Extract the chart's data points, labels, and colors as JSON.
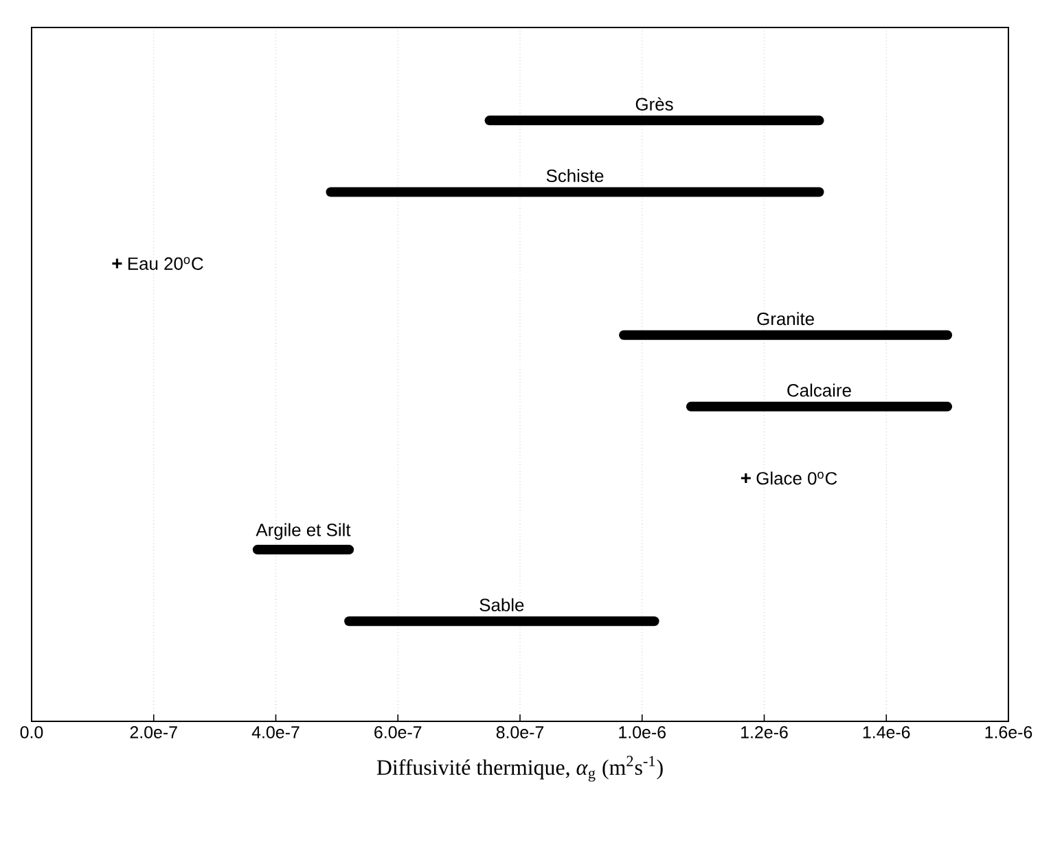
{
  "chart_data": {
    "type": "bar",
    "orientation": "horizontal",
    "xlabel": "Diffusivité thermique, *α*$_{g}$ (m$^{2}$s$^{-1}$)",
    "categories": [
      "Grès",
      "Schiste",
      "Eau 20$^{o}$C",
      "Granite",
      "Calcaire",
      "Glace 0$^{o}$C",
      "Argile et Silt",
      "Sable"
    ],
    "series": [
      {
        "color": "#000000",
        "base": [
          7.5e-07,
          4.9e-07,
          null,
          9.7e-07,
          1.08e-06,
          null,
          3.7e-07,
          5.2e-07
        ],
        "values": [
          5.4e-07,
          8e-07,
          null,
          5.3e-07,
          4.2e-07,
          null,
          1.5e-07,
          5e-07
        ]
      },
      {
        "type": "scatter",
        "color": "#000000",
        "marker": "cross",
        "values": [
          null,
          null,
          1.4e-07,
          null,
          null,
          1.17e-06,
          null,
          null
        ]
      }
    ],
    "xlim": [
      0,
      1.6e-06
    ],
    "xticks": [
      {
        "value": 0,
        "label": "0.0"
      },
      {
        "value": 2e-07,
        "label": "2.0e-7"
      },
      {
        "value": 4e-07,
        "label": "4.0e-7"
      },
      {
        "value": 6e-07,
        "label": "6.0e-7"
      },
      {
        "value": 8e-07,
        "label": "8.0e-7"
      },
      {
        "value": 1e-06,
        "label": "1.0e-6"
      },
      {
        "value": 1.2e-06,
        "label": "1.2e-6"
      },
      {
        "value": 1.4e-06,
        "label": "1.4e-6"
      },
      {
        "value": 1.6e-06,
        "label": "1.6e-6"
      }
    ],
    "grid": "x"
  }
}
